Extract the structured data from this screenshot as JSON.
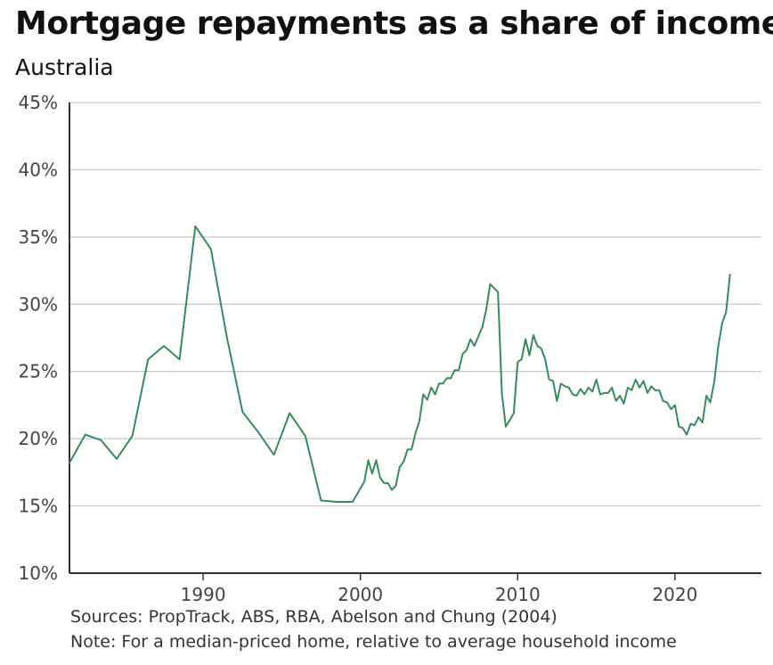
{
  "chart_data": {
    "type": "line",
    "title": "Mortgage repayments as a share of income",
    "subtitle": "Australia",
    "xlim": [
      1981.5,
      2025.5
    ],
    "ylim": [
      10,
      45
    ],
    "y_ticks": [
      10,
      15,
      20,
      25,
      30,
      35,
      40,
      45
    ],
    "y_tick_labels": [
      "10%",
      "15%",
      "20%",
      "25%",
      "30%",
      "35%",
      "40%",
      "45%"
    ],
    "x_ticks": [
      1990,
      2000,
      2010,
      2020
    ],
    "x_tick_labels": [
      "1990",
      "2000",
      "2010",
      "2020"
    ],
    "grid": "horizontal",
    "legend": "none",
    "line_color": "#3a8a5c",
    "series": [
      {
        "x": [
          1981.5,
          1982.5,
          1983.5,
          1984.5,
          1985.5,
          1986.5,
          1987.5,
          1988.5,
          1989.5,
          1990.5,
          1991.5,
          1992.5,
          1993.5,
          1994.5,
          1995.5,
          1996.5,
          1997.5,
          1998.5,
          1999.5,
          2000.25,
          2000.5,
          2000.75,
          2001.0,
          2001.25,
          2001.5,
          2001.75,
          2002.0,
          2002.25,
          2002.5,
          2002.75,
          2003.0,
          2003.25,
          2003.5,
          2003.75,
          2004.0,
          2004.25,
          2004.5,
          2004.75,
          2005.0,
          2005.25,
          2005.5,
          2005.75,
          2006.0,
          2006.25,
          2006.5,
          2006.75,
          2007.0,
          2007.25,
          2007.5,
          2007.75,
          2008.0,
          2008.25,
          2008.5,
          2008.75,
          2009.0,
          2009.25,
          2009.5,
          2009.75,
          2010.0,
          2010.25,
          2010.5,
          2010.75,
          2011.0,
          2011.25,
          2011.5,
          2011.75,
          2012.0,
          2012.25,
          2012.5,
          2012.75,
          2013.0,
          2013.25,
          2013.5,
          2013.75,
          2014.0,
          2014.25,
          2014.5,
          2014.75,
          2015.0,
          2015.25,
          2015.5,
          2015.75,
          2016.0,
          2016.25,
          2016.5,
          2016.75,
          2017.0,
          2017.25,
          2017.5,
          2017.75,
          2018.0,
          2018.25,
          2018.5,
          2018.75,
          2019.0,
          2019.25,
          2019.5,
          2019.75,
          2020.0,
          2020.25,
          2020.5,
          2020.75,
          2021.0,
          2021.25,
          2021.5,
          2021.75,
          2022.0,
          2022.25,
          2022.5,
          2022.75,
          2023.0,
          2023.25,
          2023.5
        ],
        "y": [
          18.2,
          20.3,
          19.9,
          18.5,
          20.2,
          25.9,
          26.9,
          25.9,
          35.8,
          34.1,
          27.6,
          22.0,
          20.5,
          18.8,
          21.9,
          20.2,
          15.4,
          15.3,
          15.3,
          16.8,
          18.4,
          17.4,
          18.4,
          17.1,
          16.7,
          16.7,
          16.2,
          16.5,
          17.9,
          18.3,
          19.2,
          19.2,
          20.4,
          21.3,
          23.3,
          22.9,
          23.8,
          23.3,
          24.1,
          24.1,
          24.5,
          24.5,
          25.1,
          25.1,
          26.3,
          26.6,
          27.4,
          26.9,
          27.6,
          28.3,
          29.6,
          31.5,
          31.2,
          30.9,
          23.3,
          20.9,
          21.4,
          21.9,
          25.7,
          25.9,
          27.4,
          26.2,
          27.7,
          26.9,
          26.7,
          25.9,
          24.4,
          24.3,
          22.8,
          24.1,
          23.9,
          23.8,
          23.3,
          23.2,
          23.7,
          23.3,
          23.8,
          23.5,
          24.4,
          23.3,
          23.4,
          23.4,
          23.8,
          22.8,
          23.2,
          22.6,
          23.8,
          23.6,
          24.4,
          23.8,
          24.3,
          23.4,
          23.9,
          23.6,
          23.6,
          22.8,
          22.7,
          22.2,
          22.5,
          20.9,
          20.8,
          20.3,
          21.1,
          21.0,
          21.6,
          21.2,
          23.2,
          22.7,
          24.2,
          26.8,
          28.6,
          29.4,
          32.2
        ]
      }
    ]
  },
  "footer": {
    "sources": "Sources: PropTrack, ABS, RBA, Abelson and Chung (2004)",
    "note": "Note: For a median-priced home, relative to average household income"
  }
}
